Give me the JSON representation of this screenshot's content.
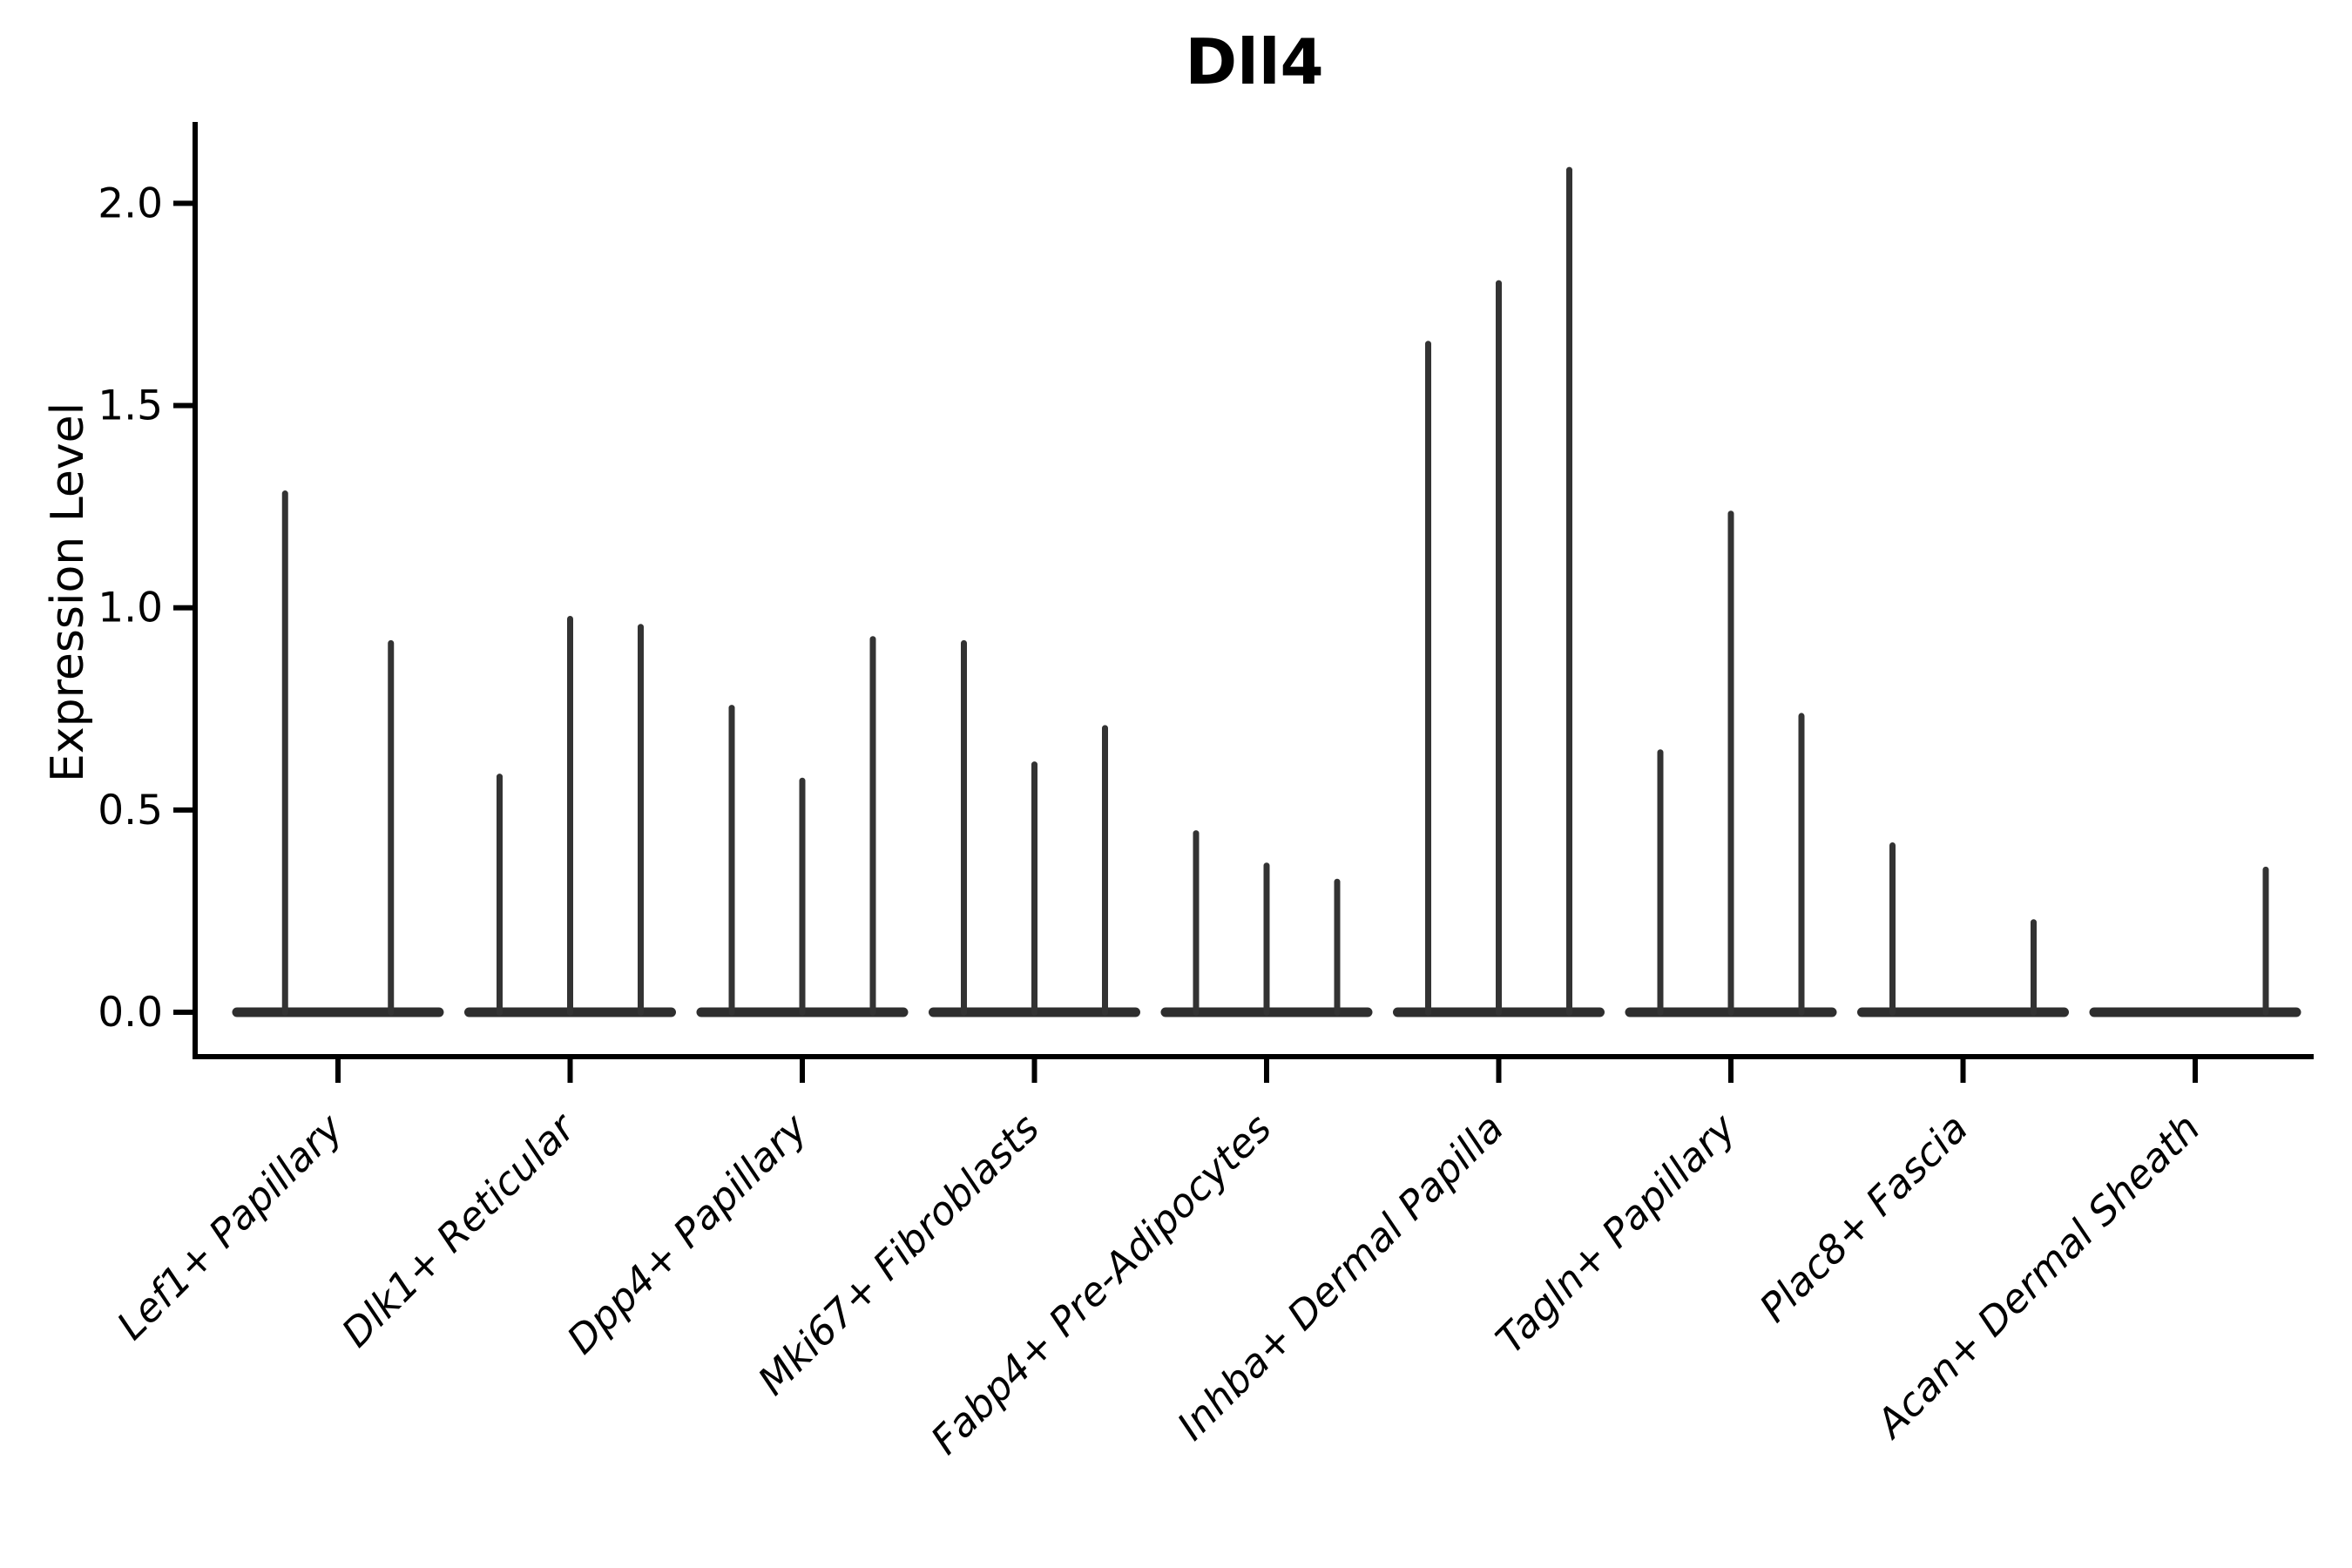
{
  "figure": {
    "title": "Dll4",
    "y_axis_label": "Expression Level"
  },
  "chart_data": {
    "type": "violin",
    "title": "Dll4",
    "ylabel": "Expression Level",
    "xlabel": "",
    "ylim": [
      0,
      2.2
    ],
    "yticks": [
      0.0,
      0.5,
      1.0,
      1.5,
      2.0
    ],
    "ytick_labels": [
      "0.0",
      "0.5",
      "1.0",
      "1.5",
      "2.0"
    ],
    "grid": false,
    "legend": false,
    "tick_label_style": "italic, rotated 45°",
    "categories": [
      "Lef1+ Papillary",
      "Dlk1+ Reticular",
      "Dpp4+ Papillary",
      "Mki67+ Fibroblasts",
      "Fabp4+ Pre-Adipocytes",
      "Inhba+ Dermal Papilla",
      "Tagln+ Papillary",
      "Plac8+ Fascia",
      "Acan+ Dermal Sheath"
    ],
    "series_note": "Each category holds adjacent needle-thin violins (most mass at 0); values are the peak expression of each violin spike, 0 = flat violin with no spike",
    "series": [
      {
        "category": "Lef1+ Papillary",
        "violin_peaks": [
          1.29,
          0.92
        ]
      },
      {
        "category": "Dlk1+ Reticular",
        "violin_peaks": [
          0.59,
          0.98,
          0.96
        ]
      },
      {
        "category": "Dpp4+ Papillary",
        "violin_peaks": [
          0.76,
          0.58,
          0.93
        ]
      },
      {
        "category": "Mki67+ Fibroblasts",
        "violin_peaks": [
          0.92,
          0.62,
          0.71
        ]
      },
      {
        "category": "Fabp4+ Pre-Adipocytes",
        "violin_peaks": [
          0.45,
          0.37,
          0.33
        ]
      },
      {
        "category": "Inhba+ Dermal Papilla",
        "violin_peaks": [
          1.66,
          1.81,
          2.09
        ]
      },
      {
        "category": "Tagln+ Papillary",
        "violin_peaks": [
          0.65,
          1.24,
          0.74
        ]
      },
      {
        "category": "Plac8+ Fascia",
        "violin_peaks": [
          0.42,
          0.0,
          0.23
        ]
      },
      {
        "category": "Acan+ Dermal Sheath",
        "violin_peaks": [
          0.0,
          0.0,
          0.36
        ]
      }
    ],
    "colors": {
      "violin_line": "#333333",
      "violin_base": "#2e2e2e",
      "axis": "#000000",
      "text": "#000000",
      "background": "#ffffff"
    }
  }
}
